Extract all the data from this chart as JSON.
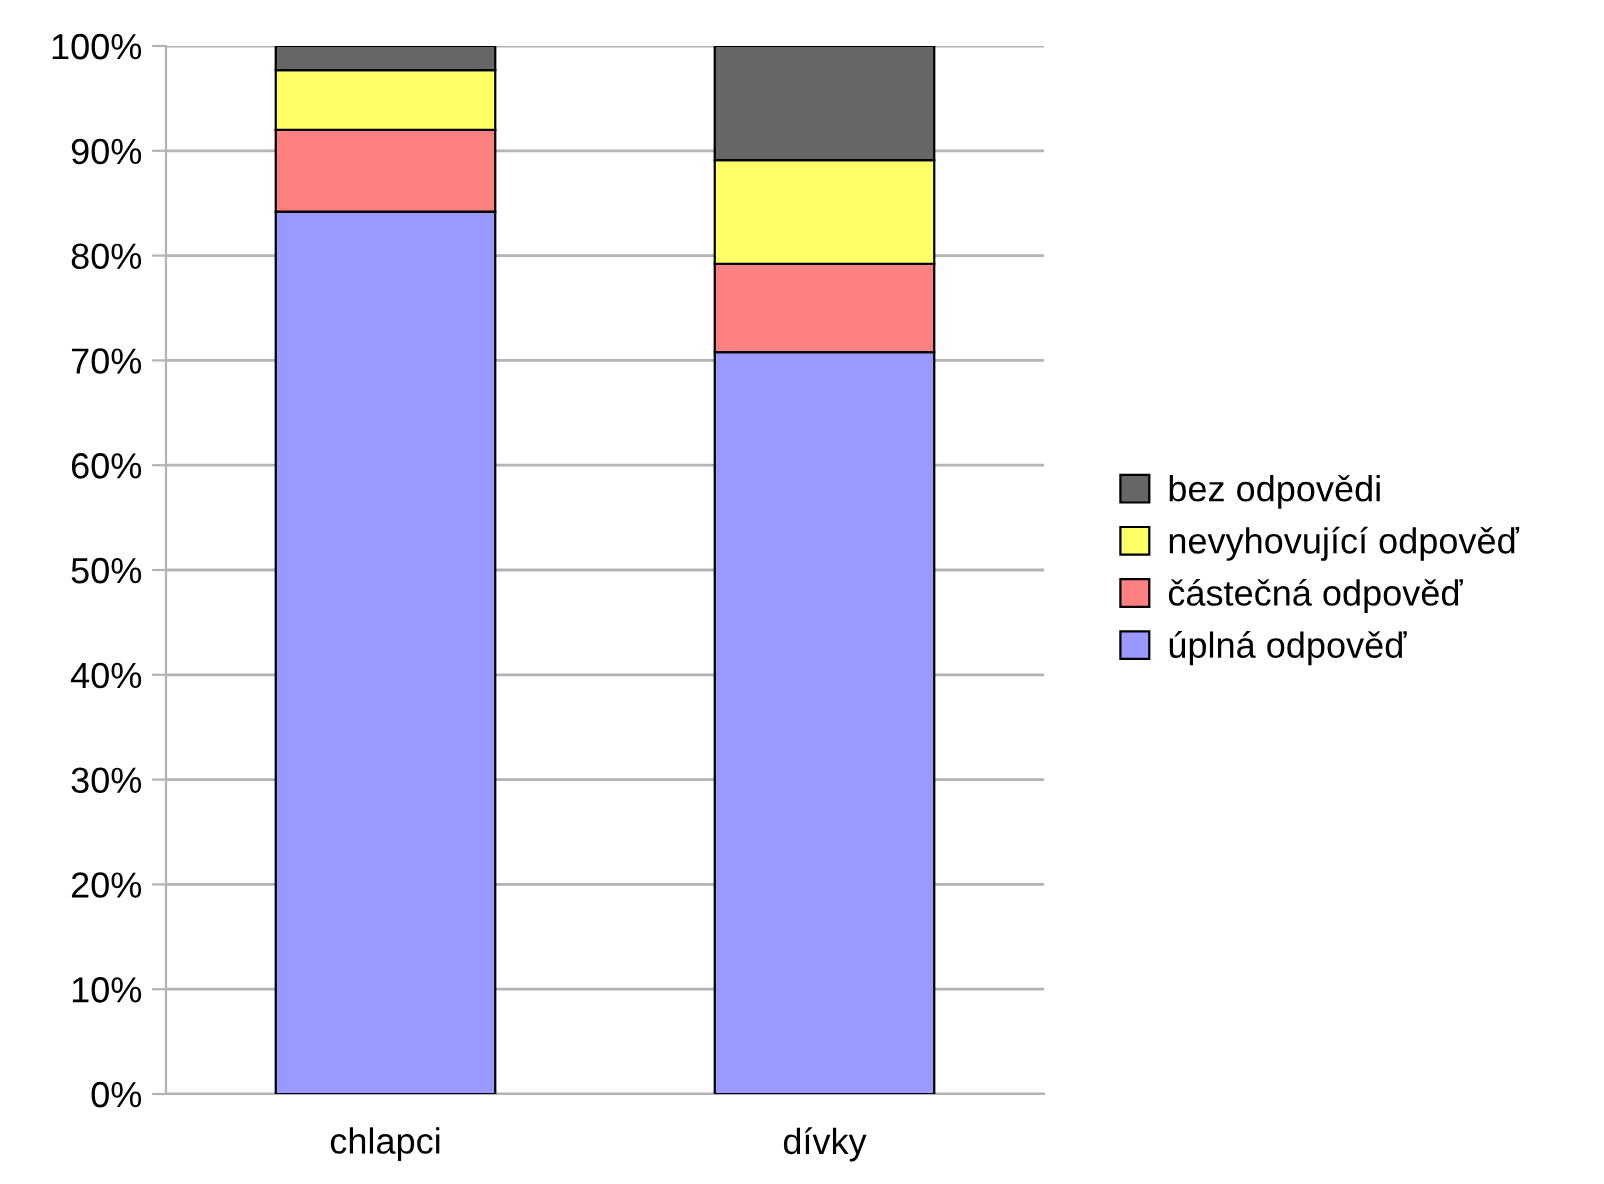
{
  "chart_data": {
    "type": "bar",
    "stacked": true,
    "categories": [
      "chlapci",
      "dívky"
    ],
    "series": [
      {
        "name": "úplná odpověď",
        "color": "#9999ff",
        "values": [
          84.2,
          70.8
        ]
      },
      {
        "name": "částečná odpověď",
        "color": "#ff8080",
        "values": [
          7.8,
          8.4
        ]
      },
      {
        "name": "nevyhovující odpověď",
        "color": "#ffff66",
        "values": [
          5.7,
          9.9
        ]
      },
      {
        "name": "bez odpovědi",
        "color": "#666666",
        "values": [
          2.3,
          10.9
        ]
      }
    ],
    "ylim": [
      0,
      100
    ],
    "yticks": [
      {
        "value": 0,
        "label": "0%"
      },
      {
        "value": 10,
        "label": "10%"
      },
      {
        "value": 20,
        "label": "20%"
      },
      {
        "value": 30,
        "label": "30%"
      },
      {
        "value": 40,
        "label": "40%"
      },
      {
        "value": 50,
        "label": "50%"
      },
      {
        "value": 60,
        "label": "60%"
      },
      {
        "value": 70,
        "label": "70%"
      },
      {
        "value": 80,
        "label": "80%"
      },
      {
        "value": 90,
        "label": "90%"
      },
      {
        "value": 100,
        "label": "100%"
      }
    ],
    "grid": "y",
    "legend": "right"
  }
}
